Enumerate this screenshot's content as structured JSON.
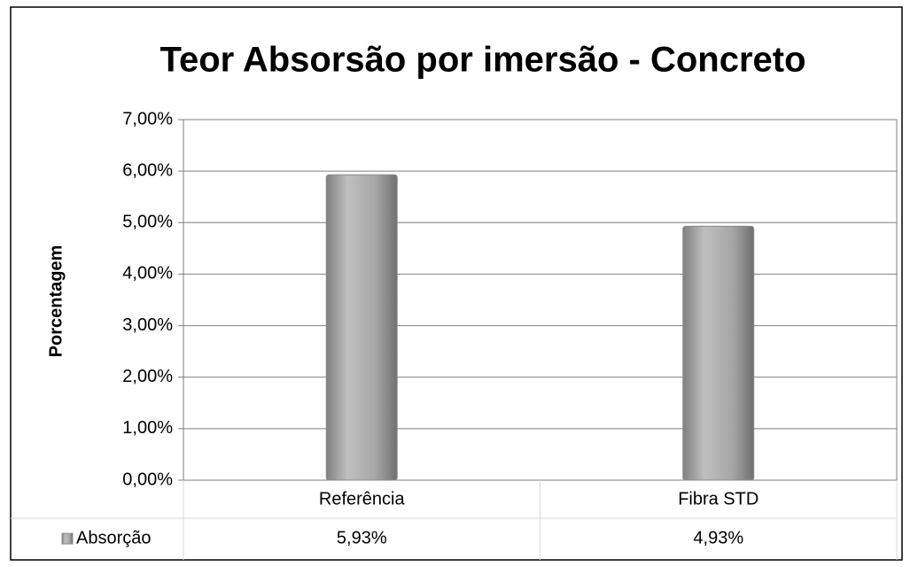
{
  "chart_data": {
    "type": "bar",
    "title": "Teor Absorsão por imersão - Concreto",
    "y_label": "Porcentagem",
    "categories": [
      "Referência",
      "Fibra STD"
    ],
    "series": [
      {
        "name": "Absorção",
        "color": "#a6a6a6",
        "values": [
          5.93,
          4.93
        ],
        "value_labels": [
          "5,93%",
          "4,93%"
        ]
      }
    ],
    "ylim": [
      0,
      7
    ],
    "yticks": [
      {
        "value": 0,
        "label": "0,00%"
      },
      {
        "value": 1,
        "label": "1,00%"
      },
      {
        "value": 2,
        "label": "2,00%"
      },
      {
        "value": 3,
        "label": "3,00%"
      },
      {
        "value": 4,
        "label": "4,00%"
      },
      {
        "value": 5,
        "label": "5,00%"
      },
      {
        "value": 6,
        "label": "6,00%"
      },
      {
        "value": 7,
        "label": "7,00%"
      }
    ],
    "grid": true
  }
}
